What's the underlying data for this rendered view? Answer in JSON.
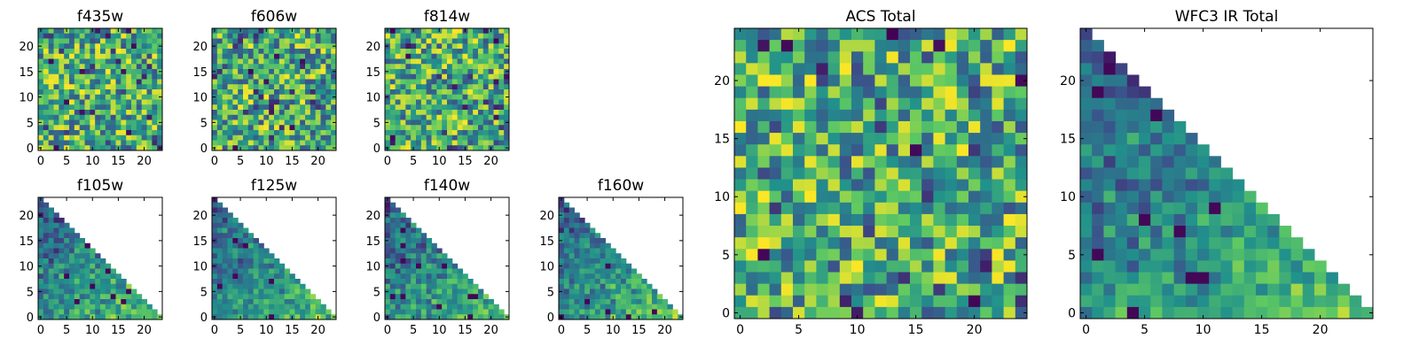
{
  "chart_data": [
    {
      "type": "heatmap",
      "title": "f435w",
      "grid": [
        24,
        24
      ],
      "xticks": [
        0,
        5,
        10,
        15,
        20
      ],
      "yticks": [
        0,
        5,
        10,
        15,
        20
      ],
      "region": "full",
      "seed": 11
    },
    {
      "type": "heatmap",
      "title": "f606w",
      "grid": [
        24,
        24
      ],
      "xticks": [
        0,
        5,
        10,
        15,
        20
      ],
      "yticks": [
        0,
        5,
        10,
        15,
        20
      ],
      "region": "full",
      "seed": 23
    },
    {
      "type": "heatmap",
      "title": "f814w",
      "grid": [
        24,
        24
      ],
      "xticks": [
        0,
        5,
        10,
        15,
        20
      ],
      "yticks": [
        0,
        5,
        10,
        15,
        20
      ],
      "region": "full",
      "seed": 37
    },
    {
      "type": "heatmap",
      "title": "f105w",
      "grid": [
        24,
        24
      ],
      "xticks": [
        0,
        5,
        10,
        15,
        20
      ],
      "yticks": [
        0,
        5,
        10,
        15,
        20
      ],
      "region": "lower-left-triangle",
      "seed": 41
    },
    {
      "type": "heatmap",
      "title": "f125w",
      "grid": [
        24,
        24
      ],
      "xticks": [
        0,
        5,
        10,
        15,
        20
      ],
      "yticks": [
        0,
        5,
        10,
        15,
        20
      ],
      "region": "lower-left-triangle",
      "seed": 53
    },
    {
      "type": "heatmap",
      "title": "f140w",
      "grid": [
        24,
        24
      ],
      "xticks": [
        0,
        5,
        10,
        15,
        20
      ],
      "yticks": [
        0,
        5,
        10,
        15,
        20
      ],
      "region": "lower-left-triangle",
      "seed": 67
    },
    {
      "type": "heatmap",
      "title": "f160w",
      "grid": [
        24,
        24
      ],
      "xticks": [
        0,
        5,
        10,
        15,
        20
      ],
      "yticks": [
        0,
        5,
        10,
        15,
        20
      ],
      "region": "lower-left-triangle",
      "seed": 79
    },
    {
      "type": "heatmap",
      "title": "ACS Total",
      "grid": [
        25,
        25
      ],
      "xticks": [
        0,
        5,
        10,
        15,
        20
      ],
      "yticks": [
        0,
        5,
        10,
        15,
        20
      ],
      "region": "full",
      "seed": 97
    },
    {
      "type": "heatmap",
      "title": "WFC3 IR Total",
      "grid": [
        25,
        25
      ],
      "xticks": [
        0,
        5,
        10,
        15,
        20
      ],
      "yticks": [
        0,
        5,
        10,
        15,
        20
      ],
      "region": "lower-left-triangle",
      "seed": 113
    }
  ],
  "colormap": [
    "#440154",
    "#3b528b",
    "#21918c",
    "#5ec962",
    "#fde725"
  ]
}
